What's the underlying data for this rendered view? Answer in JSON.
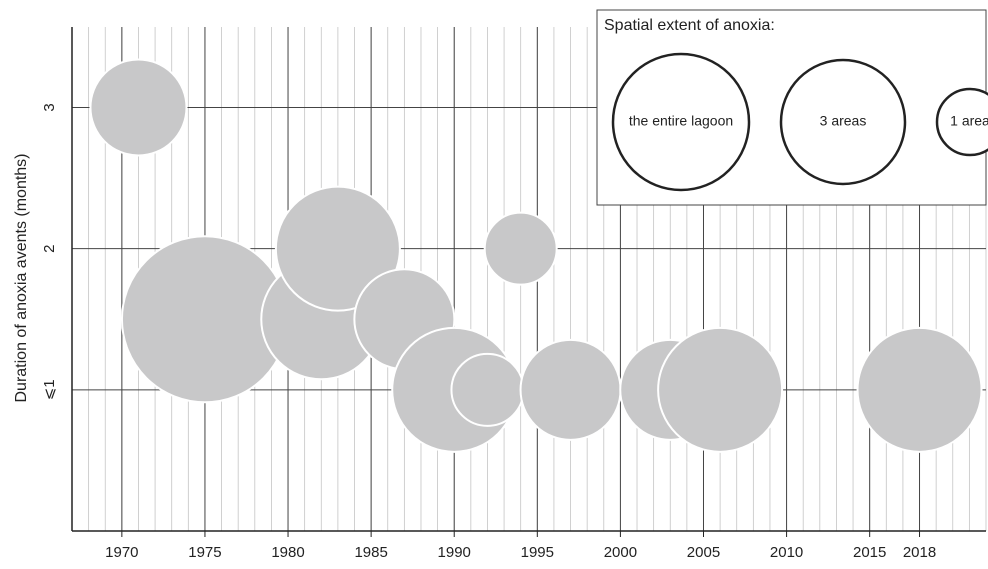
{
  "chart_data": {
    "type": "bubble",
    "y_label": "Duration of anoxia avents (months)",
    "x": [
      1971,
      1975,
      1982,
      1983,
      1987,
      1990,
      1992,
      1994,
      1997,
      2003,
      2006,
      2018
    ],
    "values": [
      3,
      1.5,
      1.5,
      2,
      1.5,
      1,
      1,
      2,
      1,
      1,
      1,
      1
    ],
    "sizes": [
      48,
      83,
      60,
      62,
      50,
      62,
      36,
      36,
      50,
      50,
      62,
      62
    ],
    "color": "#c8c8c9",
    "xlim": [
      1967,
      2022
    ],
    "ylim": [
      0,
      3.57
    ],
    "xticks": [
      1970,
      1975,
      1980,
      1985,
      1990,
      1995,
      2000,
      2005,
      2010,
      2015,
      2018
    ],
    "yticks": [
      {
        "value": 1,
        "label": "⩽1"
      },
      2,
      3
    ],
    "grid": true,
    "legend": {
      "title": "Spatial extent of anoxia:",
      "items": [
        {
          "label": "the entire lagoon",
          "size": 68
        },
        {
          "label": "3 areas",
          "size": 62
        },
        {
          "label": "1 area",
          "size": 33
        }
      ]
    }
  }
}
